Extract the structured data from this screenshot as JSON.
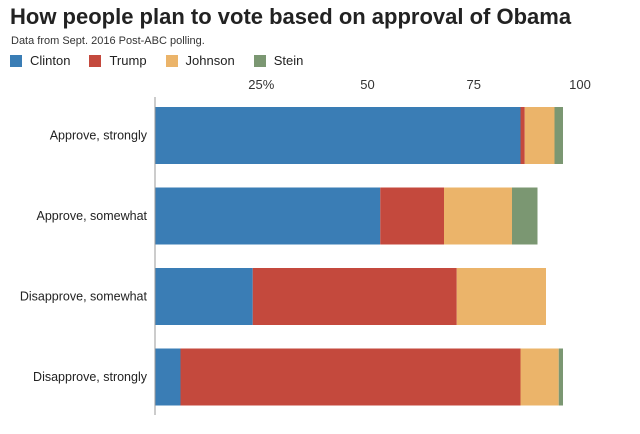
{
  "header": {
    "title": "How people plan to vote based on approval of Obama",
    "subtitle": "Data from Sept. 2016 Post-ABC polling."
  },
  "chart_data": {
    "type": "bar",
    "orientation": "horizontal",
    "stacked": true,
    "title": "How people plan to vote based on approval of Obama",
    "subtitle": "Data from Sept. 2016 Post-ABC polling.",
    "categories": [
      "Approve, strongly",
      "Approve, somewhat",
      "Disapprove, somewhat",
      "Disapprove, strongly"
    ],
    "series": [
      {
        "name": "Clinton",
        "color": "#3a7db5",
        "values": [
          86,
          53,
          23,
          6
        ]
      },
      {
        "name": "Trump",
        "color": "#c4493d",
        "values": [
          1,
          15,
          48,
          80
        ]
      },
      {
        "name": "Johnson",
        "color": "#ebb46a",
        "values": [
          7,
          16,
          21,
          9
        ]
      },
      {
        "name": "Stein",
        "color": "#7b9772",
        "values": [
          2,
          6,
          0,
          1
        ]
      }
    ],
    "xlim": [
      0,
      100
    ],
    "xticks": [
      {
        "value": 25,
        "label": "25%"
      },
      {
        "value": 50,
        "label": "50"
      },
      {
        "value": 75,
        "label": "75"
      },
      {
        "value": 100,
        "label": "100"
      }
    ],
    "grid": false,
    "legend": "top-left"
  }
}
